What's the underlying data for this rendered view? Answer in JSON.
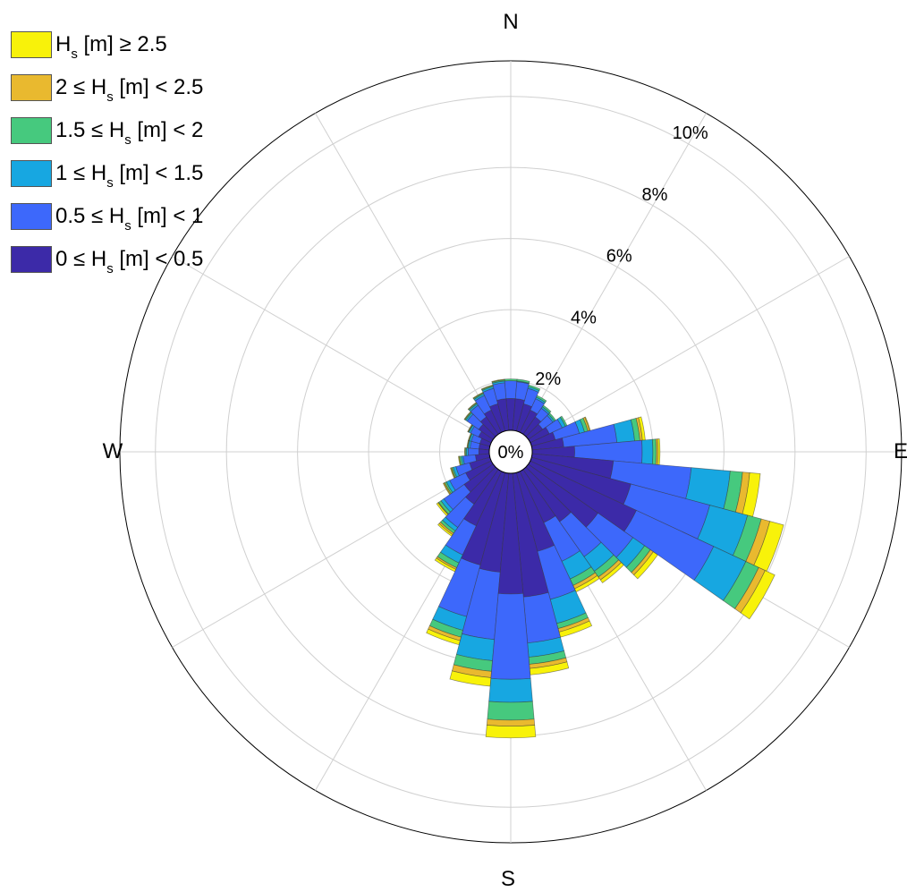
{
  "legend": [
    {
      "pre": "H",
      "sub": "s",
      "post": " [m] ≥ 2.5",
      "color": "#f8f20a"
    },
    {
      "pre": "2 ≤ H",
      "sub": "s",
      "post": " [m] < 2.5",
      "color": "#e9b92f"
    },
    {
      "pre": "1.5 ≤ H",
      "sub": "s",
      "post": " [m] < 2",
      "color": "#46c97e"
    },
    {
      "pre": "1 ≤ H",
      "sub": "s",
      "post": " [m] < 1.5",
      "color": "#17a7e1"
    },
    {
      "pre": "0.5 ≤ H",
      "sub": "s",
      "post": " [m] < 1",
      "color": "#3d68fb"
    },
    {
      "pre": "0 ≤ H",
      "sub": "s",
      "post": " [m] < 0.5",
      "color": "#3c2aa8"
    }
  ],
  "compass": {
    "n": "N",
    "e": "E",
    "s": "S",
    "w": "W"
  },
  "chart_data": {
    "type": "polar-stacked-bar",
    "center_label": "0%",
    "ring_labels": [
      "2%",
      "4%",
      "6%",
      "8%",
      "10%"
    ],
    "rmax": 11,
    "series": [
      {
        "name": "0 ≤ Hs [m] < 0.5",
        "color": "#3c2aa8"
      },
      {
        "name": "0.5 ≤ Hs [m] < 1",
        "color": "#3d68fb"
      },
      {
        "name": "1 ≤ Hs [m] < 1.5",
        "color": "#17a7e1"
      },
      {
        "name": "1.5 ≤ Hs [m] < 2",
        "color": "#46c97e"
      },
      {
        "name": "2 ≤ Hs [m] < 2.5",
        "color": "#e9b92f"
      },
      {
        "name": "Hs [m] ≥ 2.5",
        "color": "#f8f20a"
      }
    ],
    "sectors": [
      {
        "dir": 0,
        "cum": [
          1.5,
          2.0,
          2.0,
          2.05,
          2.05,
          2.05
        ]
      },
      {
        "dir": 10,
        "cum": [
          1.5,
          1.98,
          2.0,
          2.05,
          2.05,
          2.05
        ]
      },
      {
        "dir": 20,
        "cum": [
          1.4,
          1.85,
          1.9,
          1.95,
          1.95,
          1.95
        ]
      },
      {
        "dir": 30,
        "cum": [
          1.3,
          1.65,
          1.7,
          1.75,
          1.75,
          1.75
        ]
      },
      {
        "dir": 40,
        "cum": [
          1.2,
          1.5,
          1.55,
          1.6,
          1.6,
          1.6
        ]
      },
      {
        "dir": 50,
        "cum": [
          1.1,
          1.45,
          1.5,
          1.55,
          1.55,
          1.55
        ]
      },
      {
        "dir": 60,
        "cum": [
          1.2,
          1.6,
          1.7,
          1.75,
          1.75,
          1.75
        ]
      },
      {
        "dir": 70,
        "cum": [
          1.3,
          2.0,
          2.15,
          2.25,
          2.3,
          2.32
        ]
      },
      {
        "dir": 80,
        "cum": [
          1.5,
          3.0,
          3.5,
          3.65,
          3.72,
          3.8
        ]
      },
      {
        "dir": 90,
        "cum": [
          1.8,
          3.7,
          4.0,
          4.1,
          4.15,
          4.2
        ]
      },
      {
        "dir": 100,
        "cum": [
          2.9,
          5.1,
          6.2,
          6.55,
          6.75,
          7.05
        ]
      },
      {
        "dir": 110,
        "cum": [
          3.5,
          5.8,
          6.9,
          7.3,
          7.55,
          7.95
        ]
      },
      {
        "dir": 120,
        "cum": [
          3.9,
          6.3,
          7.3,
          7.7,
          7.9,
          8.2
        ]
      },
      {
        "dir": 130,
        "cum": [
          3.0,
          4.2,
          4.6,
          4.8,
          4.9,
          5.05
        ]
      },
      {
        "dir": 140,
        "cum": [
          2.4,
          3.6,
          4.1,
          4.3,
          4.4,
          4.5
        ]
      },
      {
        "dir": 150,
        "cum": [
          2.2,
          3.4,
          3.95,
          4.15,
          4.25,
          4.35
        ]
      },
      {
        "dir": 160,
        "cum": [
          2.9,
          4.3,
          5.0,
          5.15,
          5.25,
          5.4
        ]
      },
      {
        "dir": 170,
        "cum": [
          4.1,
          5.4,
          5.8,
          6.0,
          6.12,
          6.3
        ]
      },
      {
        "dir": 180,
        "cum": [
          4.0,
          6.4,
          7.05,
          7.55,
          7.72,
          8.05
        ]
      },
      {
        "dir": 190,
        "cum": [
          3.4,
          5.3,
          5.9,
          6.2,
          6.38,
          6.62
        ]
      },
      {
        "dir": 200,
        "cum": [
          3.3,
          4.8,
          5.2,
          5.4,
          5.5,
          5.62
        ]
      },
      {
        "dir": 210,
        "cum": [
          2.3,
          3.2,
          3.45,
          3.6,
          3.65,
          3.72
        ]
      },
      {
        "dir": 220,
        "cum": [
          1.8,
          2.6,
          2.72,
          2.8,
          2.85,
          2.9
        ]
      },
      {
        "dir": 230,
        "cum": [
          1.6,
          2.3,
          2.4,
          2.48,
          2.5,
          2.55
        ]
      },
      {
        "dir": 240,
        "cum": [
          1.4,
          1.9,
          2.0,
          2.05,
          2.08,
          2.1
        ]
      },
      {
        "dir": 250,
        "cum": [
          1.2,
          1.6,
          1.68,
          1.72,
          1.74,
          1.76
        ]
      },
      {
        "dir": 260,
        "cum": [
          1.0,
          1.35,
          1.4,
          1.45,
          1.46,
          1.48
        ]
      },
      {
        "dir": 270,
        "cum": [
          0.9,
          1.2,
          1.25,
          1.28,
          1.29,
          1.3
        ]
      },
      {
        "dir": 280,
        "cum": [
          0.9,
          1.15,
          1.2,
          1.22,
          1.23,
          1.24
        ]
      },
      {
        "dir": 290,
        "cum": [
          0.9,
          1.15,
          1.2,
          1.22,
          1.23,
          1.24
        ]
      },
      {
        "dir": 300,
        "cum": [
          1.0,
          1.25,
          1.3,
          1.32,
          1.33,
          1.34
        ]
      },
      {
        "dir": 310,
        "cum": [
          1.1,
          1.5,
          1.55,
          1.58,
          1.59,
          1.6
        ]
      },
      {
        "dir": 320,
        "cum": [
          1.2,
          1.6,
          1.65,
          1.68,
          1.69,
          1.7
        ]
      },
      {
        "dir": 330,
        "cum": [
          1.3,
          1.75,
          1.8,
          1.83,
          1.84,
          1.85
        ]
      },
      {
        "dir": 340,
        "cum": [
          1.4,
          1.85,
          1.9,
          1.93,
          1.94,
          1.95
        ]
      },
      {
        "dir": 350,
        "cum": [
          1.5,
          1.95,
          2.0,
          2.03,
          2.04,
          2.05
        ]
      }
    ]
  }
}
